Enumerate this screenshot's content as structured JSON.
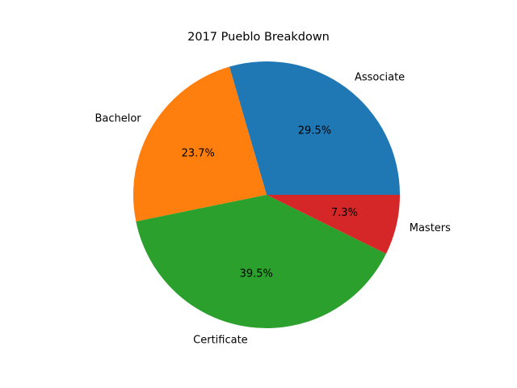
{
  "chart_data": {
    "type": "pie",
    "title": "2017 Pueblo Breakdown",
    "categories": [
      "Associate",
      "Bachelor",
      "Certificate",
      "Masters"
    ],
    "values": [
      29.5,
      23.7,
      39.5,
      7.3
    ],
    "percent_labels": [
      "29.5%",
      "23.7%",
      "39.5%",
      "7.3%"
    ],
    "colors": [
      "#1f77b4",
      "#ff7f0e",
      "#2ca02c",
      "#d62728"
    ],
    "start_angle_deg": 0,
    "direction": "counterclockwise",
    "legend": "none"
  }
}
